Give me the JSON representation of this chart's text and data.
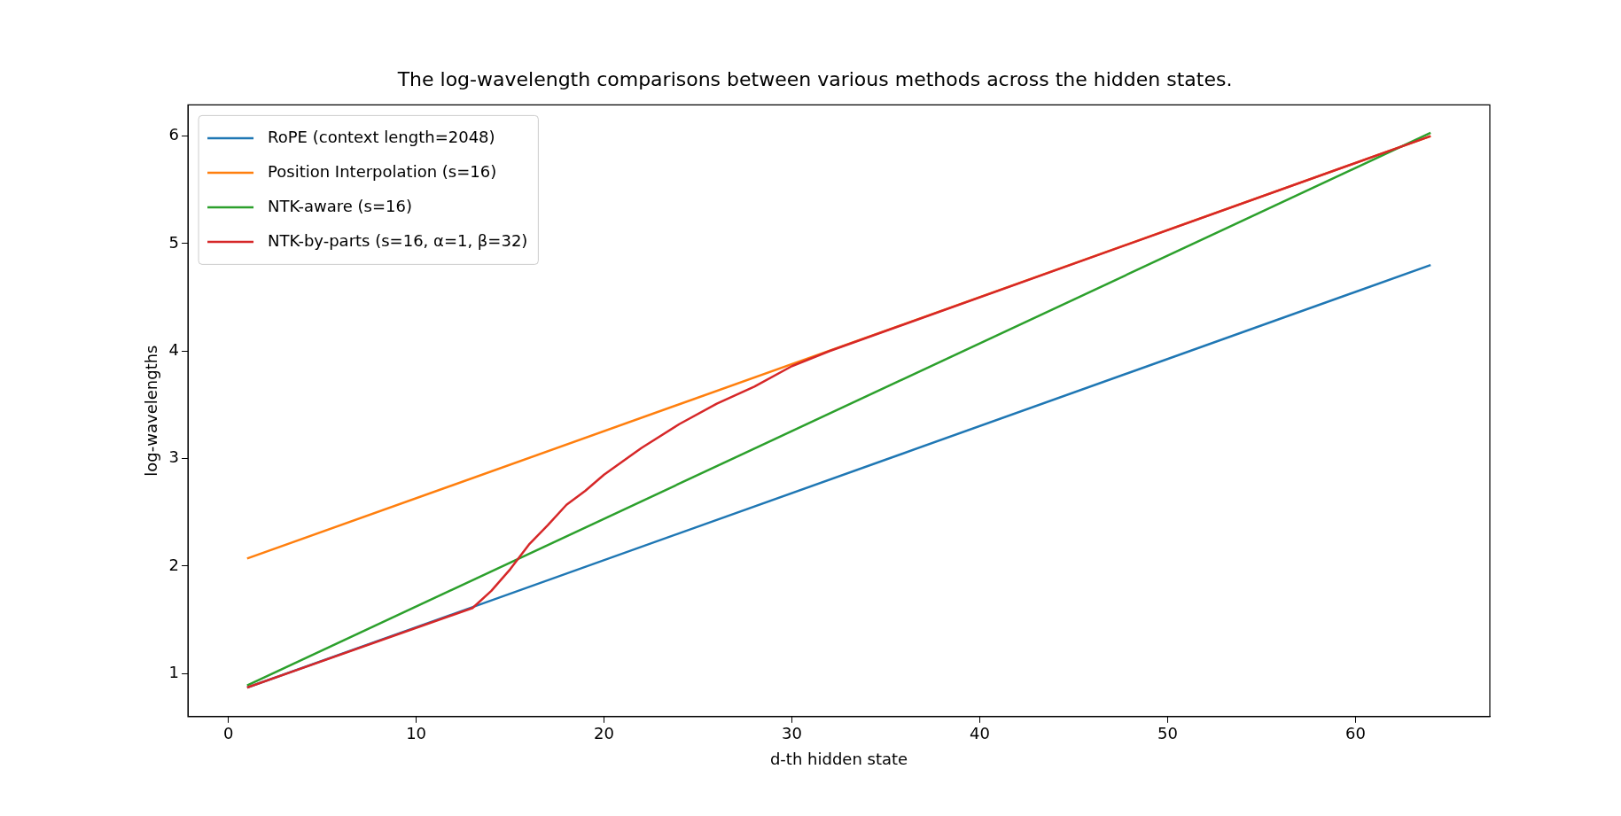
{
  "chart_data": {
    "type": "line",
    "title": "The log-wavelength comparisons between various methods across the hidden states.",
    "xlabel": "d-th hidden state",
    "ylabel": "log-wavelengths",
    "xlim": [
      -2.15,
      67.15
    ],
    "xticks": [
      0,
      10,
      20,
      30,
      40,
      50,
      60
    ],
    "ylim": [
      0.6,
      6.29
    ],
    "yticks": [
      1,
      2,
      3,
      4,
      5,
      6
    ],
    "grid": false,
    "legend": "top left",
    "line_style": "solid",
    "marker": "none",
    "series": [
      {
        "name": "RoPE (context length=2048)",
        "color": "#1f77b4",
        "x": [
          1,
          64
        ],
        "values": [
          0.87,
          4.8
        ]
      },
      {
        "name": "Position Interpolation (s=16)",
        "color": "#ff7f0e",
        "x": [
          1,
          64
        ],
        "values": [
          2.07,
          6.0
        ]
      },
      {
        "name": "NTK-aware (s=16)",
        "color": "#2ca02c",
        "x": [
          1,
          64
        ],
        "values": [
          0.89,
          6.03
        ]
      },
      {
        "name": "NTK-by-parts (s=16, α=1, β=32)",
        "color": "#d62728",
        "x": [
          1,
          13,
          14,
          15,
          16,
          17,
          18,
          19,
          20,
          22,
          24,
          26,
          28,
          30,
          32,
          64
        ],
        "values": [
          0.87,
          1.61,
          1.77,
          1.97,
          2.2,
          2.38,
          2.57,
          2.7,
          2.85,
          3.1,
          3.32,
          3.51,
          3.67,
          3.86,
          4.0,
          6.0
        ]
      }
    ]
  }
}
